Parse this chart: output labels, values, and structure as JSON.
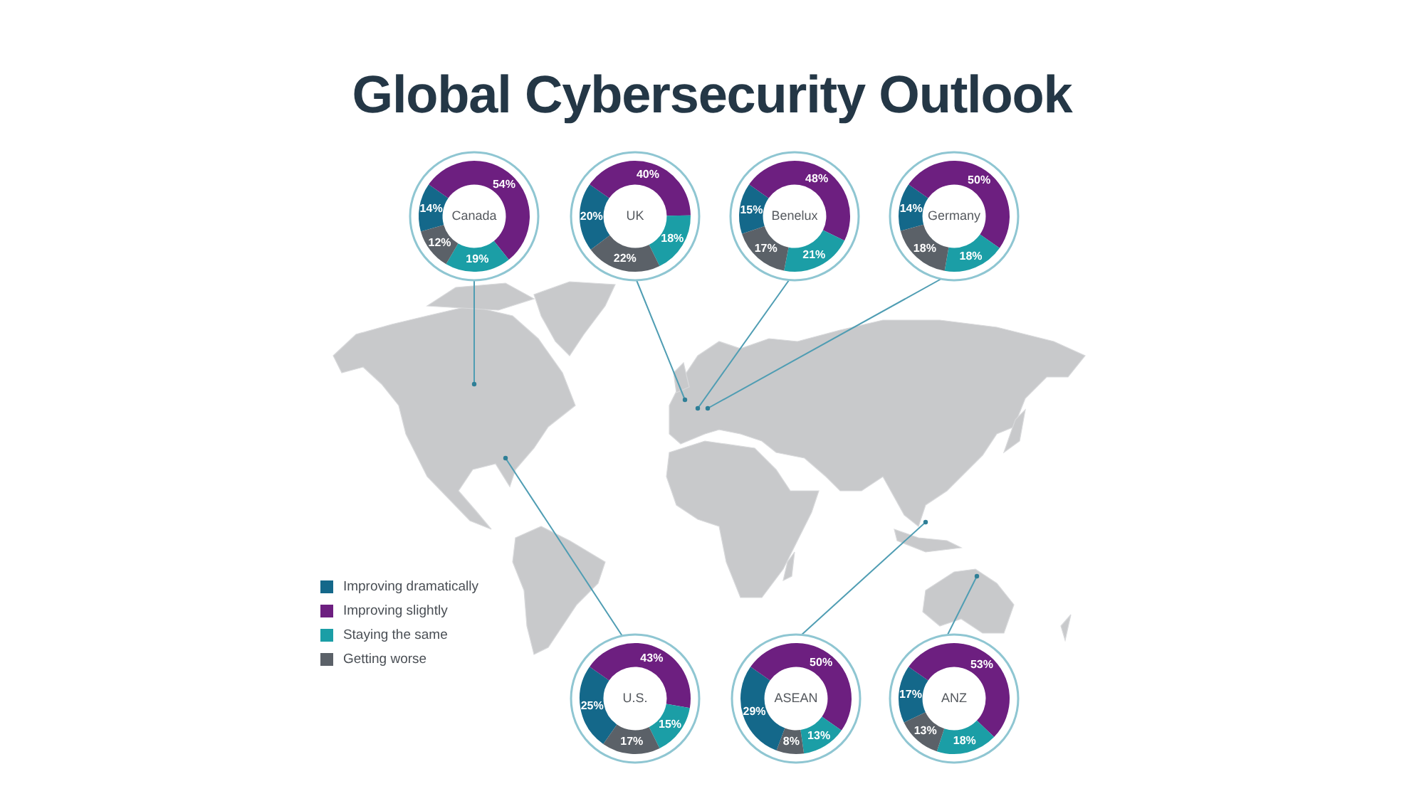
{
  "chart_data": [
    {
      "type": "other",
      "title": "Global Cybersecurity Outlook"
    },
    {
      "type": "donut",
      "title": "Canada",
      "categories": [
        null,
        null,
        null,
        null
      ],
      "values": [
        14,
        54,
        19,
        12
      ],
      "colors": [
        "#14688a",
        "#6d1f80",
        "#1b9ea6",
        "#5b6168"
      ],
      "value_labels": [
        "14%",
        "54%",
        "19%",
        "12%"
      ]
    },
    {
      "type": "donut",
      "title": "UK",
      "categories": [
        null,
        null,
        null,
        null
      ],
      "values": [
        20,
        40,
        18,
        22
      ],
      "colors": [
        "#14688a",
        "#6d1f80",
        "#1b9ea6",
        "#5b6168"
      ],
      "value_labels": [
        "20%",
        "40%",
        "18%",
        "22%"
      ]
    },
    {
      "type": "donut",
      "title": "Benelux",
      "categories": [
        null,
        null,
        null,
        null
      ],
      "values": [
        15,
        48,
        21,
        17
      ],
      "colors": [
        "#14688a",
        "#6d1f80",
        "#1b9ea6",
        "#5b6168"
      ],
      "value_labels": [
        "15%",
        "48%",
        "21%",
        "17%"
      ]
    },
    {
      "type": "donut",
      "title": "Germany",
      "categories": [
        null,
        null,
        null,
        null
      ],
      "values": [
        14,
        50,
        18,
        18
      ],
      "colors": [
        "#14688a",
        "#6d1f80",
        "#1b9ea6",
        "#5b6168"
      ],
      "value_labels": [
        "14%",
        "50%",
        "18%",
        "18%"
      ]
    },
    {
      "type": "donut",
      "title": "U.S.",
      "categories": [
        "Improving dramatically",
        "Improving slightly",
        "Staying the same",
        "Getting worse"
      ],
      "values": [
        25,
        43,
        15,
        17
      ],
      "colors": [
        "#14688a",
        "#6d1f80",
        "#1b9ea6",
        "#5b6168"
      ],
      "value_labels": [
        "25%",
        "43%",
        "15%",
        "17%"
      ],
      "legend": "left"
    },
    {
      "type": "donut",
      "title": "ASEAN",
      "categories": [
        null,
        null,
        null,
        null
      ],
      "values": [
        29,
        50,
        13,
        8
      ],
      "colors": [
        "#14688a",
        "#6d1f80",
        "#1b9ea6",
        "#5b6168"
      ],
      "value_labels": [
        "29%",
        "50%",
        "13%",
        "8%"
      ]
    },
    {
      "type": "donut",
      "title": "ANZ",
      "categories": [
        null,
        null,
        null,
        null
      ],
      "values": [
        17,
        53,
        18,
        13
      ],
      "colors": [
        "#14688a",
        "#6d1f80",
        "#1b9ea6",
        "#5b6168"
      ],
      "value_labels": [
        "17%",
        "53%",
        "18%",
        "13%"
      ]
    }
  ]
}
